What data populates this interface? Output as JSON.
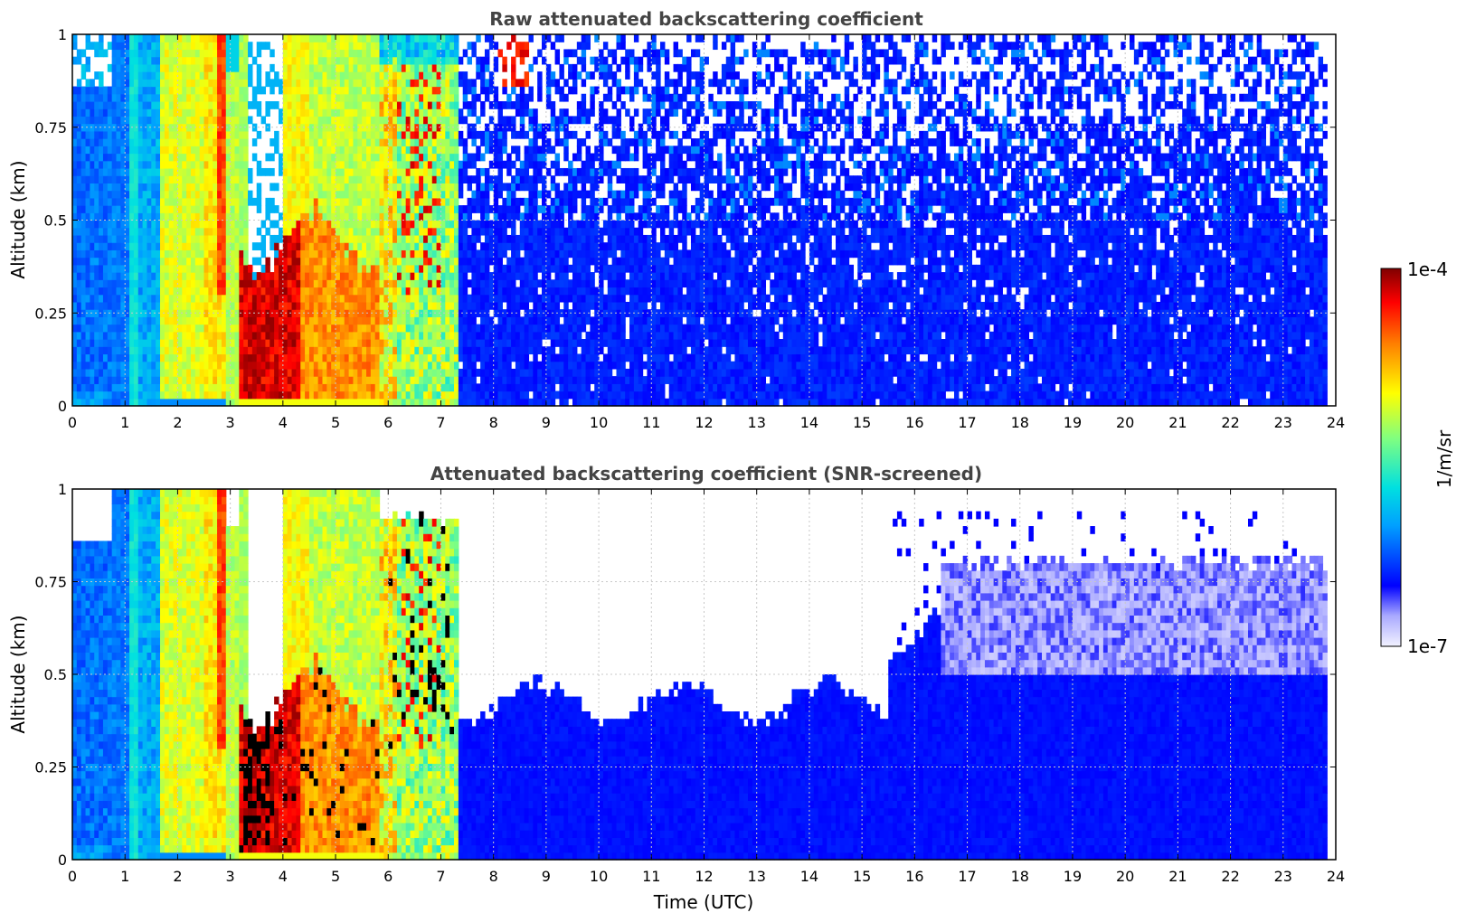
{
  "chart_data": [
    {
      "type": "heatmap",
      "title": "Raw attenuated backscattering coefficient",
      "xlabel": "",
      "ylabel": "Altitude (km)",
      "xlim": [
        0,
        24
      ],
      "ylim": [
        0,
        1
      ],
      "x_ticks": [
        "0",
        "1",
        "2",
        "3",
        "4",
        "5",
        "6",
        "7",
        "8",
        "9",
        "10",
        "11",
        "12",
        "13",
        "14",
        "15",
        "16",
        "17",
        "18",
        "19",
        "20",
        "21",
        "22",
        "23",
        "24"
      ],
      "y_ticks": [
        "0",
        "0.25",
        "0.5",
        "0.75",
        "1"
      ],
      "grid": true,
      "screened": false,
      "features": [
        {
          "x": [
            0.0,
            0.7
          ],
          "y": [
            0.0,
            0.85
          ],
          "level": "low-moderate (cyan-blue)"
        },
        {
          "x": [
            0.7,
            1.7
          ],
          "y": [
            0.0,
            1.0
          ],
          "level": "moderate (cyan)"
        },
        {
          "x": [
            1.7,
            2.9
          ],
          "y": [
            0.03,
            1.0
          ],
          "level": "high (yellow-green)"
        },
        {
          "x": [
            3.0,
            5.8
          ],
          "y": [
            0.0,
            0.45
          ],
          "level": "very high (red), maximum near 3.2-4.2"
        },
        {
          "x": [
            5.8,
            7.3
          ],
          "y": [
            0.0,
            0.9
          ],
          "level": "high (yellow to red streaks)"
        },
        {
          "x": [
            7.3,
            23.8
          ],
          "y": [
            0.0,
            0.5
          ],
          "level": "low (blue)"
        },
        {
          "x": [
            7.3,
            23.8
          ],
          "y": [
            0.5,
            1.0
          ],
          "level": "noisy low (blue speckle)"
        }
      ]
    },
    {
      "type": "heatmap",
      "title": "Attenuated backscattering coefficient (SNR-screened)",
      "xlabel": "Time (UTC)",
      "ylabel": "Altitude (km)",
      "xlim": [
        0,
        24
      ],
      "ylim": [
        0,
        1
      ],
      "x_ticks": [
        "0",
        "1",
        "2",
        "3",
        "4",
        "5",
        "6",
        "7",
        "8",
        "9",
        "10",
        "11",
        "12",
        "13",
        "14",
        "15",
        "16",
        "17",
        "18",
        "19",
        "20",
        "21",
        "22",
        "23",
        "24"
      ],
      "y_ticks": [
        "0",
        "0.25",
        "0.5",
        "0.75",
        "1"
      ],
      "grid": true,
      "screened": true,
      "features": [
        {
          "x": [
            0.0,
            0.7
          ],
          "y": [
            0.0,
            0.85
          ],
          "level": "low-moderate (cyan-blue)"
        },
        {
          "x": [
            0.7,
            1.7
          ],
          "y": [
            0.0,
            1.0
          ],
          "level": "moderate (cyan)"
        },
        {
          "x": [
            1.7,
            2.9
          ],
          "y": [
            0.03,
            1.0
          ],
          "level": "high (yellow-green)"
        },
        {
          "x": [
            3.0,
            5.8
          ],
          "y": [
            0.0,
            0.45
          ],
          "level": "very high (red/black), maximum near 3.2-4.2"
        },
        {
          "x": [
            7.3,
            15.5
          ],
          "y": [
            0.0,
            0.4
          ],
          "level": "low (blue), screened above"
        },
        {
          "x": [
            15.5,
            23.8
          ],
          "y": [
            0.0,
            0.5
          ],
          "level": "low (blue)"
        },
        {
          "x": [
            16.5,
            23.8
          ],
          "y": [
            0.5,
            0.8
          ],
          "level": "very low (pale blue)"
        }
      ]
    }
  ],
  "colorbar": {
    "max_label": "1e-4",
    "min_label": "1e-7",
    "unit_label": "1/m/sr",
    "colors": [
      "#f2f2ff",
      "#0000ff",
      "#00a0ff",
      "#00e0e0",
      "#80ff80",
      "#ffff00",
      "#ff8000",
      "#ff0000",
      "#800000"
    ]
  }
}
